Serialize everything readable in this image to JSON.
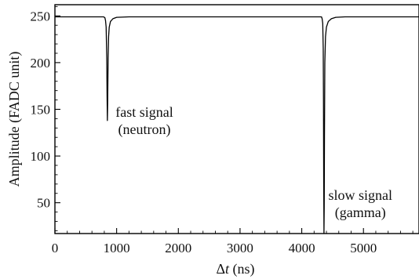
{
  "chart_data": {
    "type": "line",
    "xlabel_prefix": "Δ",
    "xlabel_var": "t",
    "xlabel_suffix": " (ns)",
    "ylabel": "Amplitude (FADC unit)",
    "xlim": [
      0,
      5900
    ],
    "ylim": [
      17,
      262
    ],
    "x_ticks": [
      0,
      1000,
      2000,
      3000,
      4000,
      5000
    ],
    "y_ticks": [
      50,
      100,
      150,
      200,
      250
    ],
    "grid": false,
    "series": [
      {
        "points": [
          [
            0,
            249
          ],
          [
            790,
            249
          ],
          [
            810,
            248
          ],
          [
            820,
            245
          ],
          [
            830,
            238
          ],
          [
            840,
            205
          ],
          [
            845,
            165
          ],
          [
            850,
            138
          ],
          [
            855,
            158
          ],
          [
            862,
            205
          ],
          [
            870,
            228
          ],
          [
            880,
            238
          ],
          [
            900,
            244
          ],
          [
            940,
            247
          ],
          [
            1000,
            248.5
          ],
          [
            1200,
            249
          ],
          [
            2000,
            249
          ],
          [
            3000,
            249
          ],
          [
            4000,
            249
          ],
          [
            4320,
            249
          ],
          [
            4330,
            247
          ],
          [
            4340,
            242
          ],
          [
            4348,
            215
          ],
          [
            4352,
            160
          ],
          [
            4356,
            70
          ],
          [
            4360,
            17
          ],
          [
            4364,
            45
          ],
          [
            4368,
            120
          ],
          [
            4374,
            200
          ],
          [
            4385,
            228
          ],
          [
            4400,
            238
          ],
          [
            4430,
            244
          ],
          [
            4480,
            247
          ],
          [
            4550,
            248.5
          ],
          [
            4700,
            249
          ],
          [
            5000,
            249
          ],
          [
            5900,
            249
          ]
        ]
      }
    ],
    "annotations": [
      {
        "lines": [
          "fast signal",
          "(neutron)"
        ],
        "x": 1450,
        "y": 142
      },
      {
        "lines": [
          "slow signal",
          "(gamma)"
        ],
        "x": 4950,
        "y": 53
      }
    ]
  }
}
